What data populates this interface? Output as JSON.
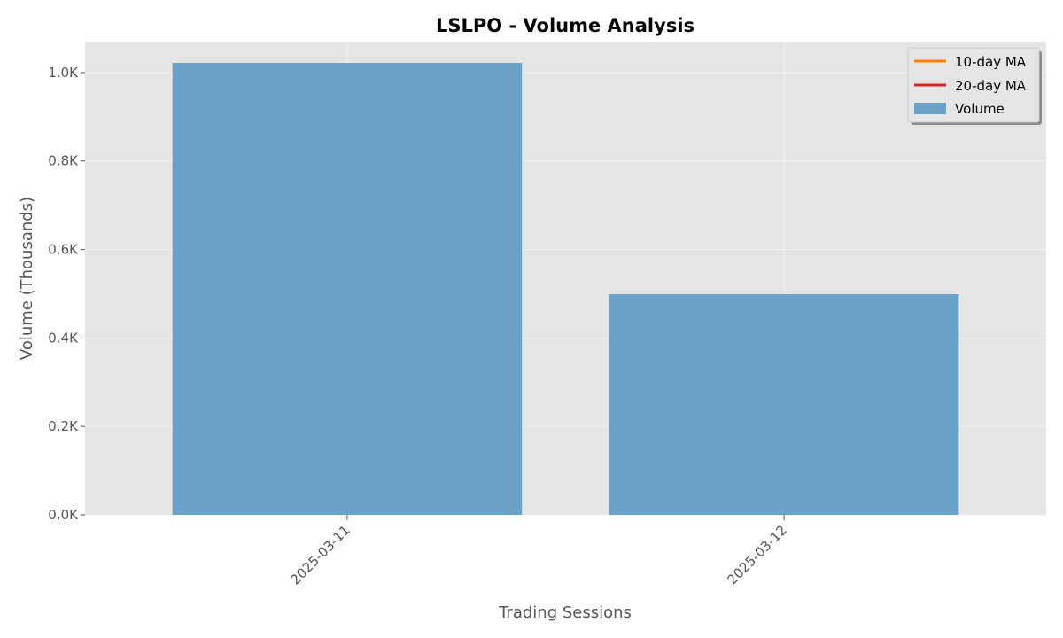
{
  "chart_data": {
    "type": "bar",
    "title": "LSLPO - Volume Analysis",
    "xlabel": "Trading Sessions",
    "ylabel": "Volume (Thousands)",
    "categories": [
      "2025-03-11",
      "2025-03-12"
    ],
    "series": [
      {
        "name": "Volume",
        "values": [
          1.022,
          0.499
        ],
        "color": "#6aa2c8"
      }
    ],
    "ylim": [
      0,
      1.07
    ],
    "yticks": [
      0.0,
      0.2,
      0.4,
      0.6,
      0.8,
      1.0
    ],
    "ytick_labels": [
      "0.0K",
      "0.2K",
      "0.4K",
      "0.6K",
      "0.8K",
      "1.0K"
    ],
    "grid": true,
    "legend": {
      "position": "top-right",
      "entries": [
        {
          "label": "10-day MA",
          "kind": "line",
          "color": "#ff7f0e"
        },
        {
          "label": "20-day MA",
          "kind": "line",
          "color": "#d62728"
        },
        {
          "label": "Volume",
          "kind": "patch",
          "color": "#6aa2c8"
        }
      ]
    }
  },
  "colors": {
    "plot_background": "#e5e5e5",
    "grid": "#f2f2f2",
    "text": "#555555"
  }
}
